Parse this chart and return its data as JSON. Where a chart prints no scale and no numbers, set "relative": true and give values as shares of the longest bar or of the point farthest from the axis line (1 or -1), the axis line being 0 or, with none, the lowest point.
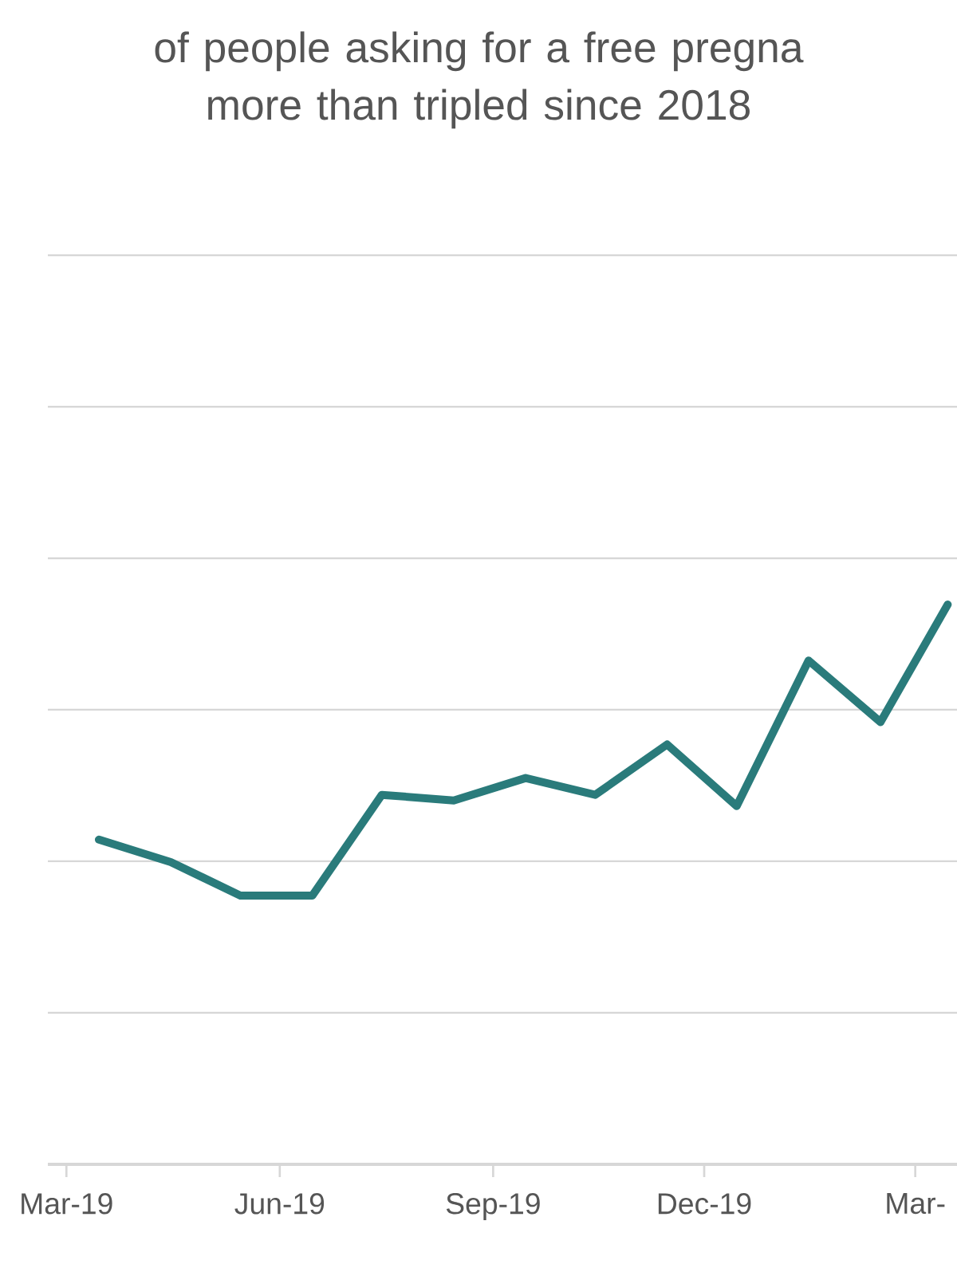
{
  "chart_data": {
    "type": "line",
    "relative": true,
    "grid": "y",
    "title": "of people asking for a free pregna more than tripled since 2018",
    "x": [
      "2019-03-15",
      "2019-04-15",
      "2019-05-15",
      "2019-06-15",
      "2019-07-15",
      "2019-08-15",
      "2019-09-15",
      "2019-10-15",
      "2019-11-15",
      "2019-12-15",
      "2020-01-15",
      "2020-02-15",
      "2020-03-15"
    ],
    "xlim": [
      "2019-02-21",
      "2020-03-19"
    ],
    "xticks": [
      {
        "value": "2019-03-01",
        "label": "Mar-19"
      },
      {
        "value": "2019-06-01",
        "label": "Jun-19"
      },
      {
        "value": "2019-09-01",
        "label": "Sep-19"
      },
      {
        "value": "2019-12-01",
        "label": "Dec-19"
      },
      {
        "value": "2020-03-01",
        "label": "Mar-"
      }
    ],
    "series": [
      {
        "color": "#2a7b7b",
        "values": [
          0.58,
          0.54,
          0.48,
          0.48,
          0.66,
          0.65,
          0.69,
          0.66,
          0.75,
          0.64,
          0.9,
          0.79,
          1.0
        ]
      }
    ]
  }
}
